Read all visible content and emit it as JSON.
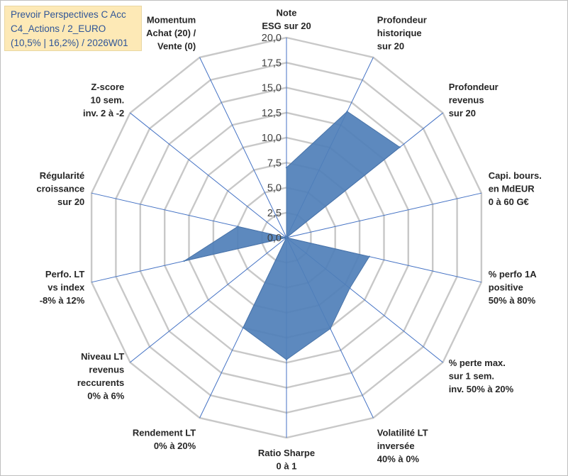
{
  "title": {
    "line1": "Prevoir Perspectives C Acc",
    "line2": "C4_Actions / 2_EURO",
    "line3": "(10,5% | 16,2%) / 2026W01"
  },
  "colors": {
    "fill": "#4f7fb9",
    "grid": "#c8c8c8",
    "spoke": "#4472c4",
    "title_bg": "#fde9b6",
    "title_text": "#2f5597"
  },
  "chart_data": {
    "type": "radar",
    "rmax": 20,
    "ticks": [
      "0,0",
      "2,5",
      "5,0",
      "7,5",
      "10,0",
      "12,5",
      "15,0",
      "17,5",
      "20,0"
    ],
    "axes": [
      {
        "label": [
          "Note",
          "ESG sur 20"
        ],
        "value": 7
      },
      {
        "label": [
          "Profondeur",
          "historique",
          "sur 20"
        ],
        "value": 14
      },
      {
        "label": [
          "Profondeur",
          "revenus",
          "sur 20"
        ],
        "value": 14.5
      },
      {
        "label": [
          "Capi. bours.",
          "en MdEUR",
          "0 à 60 G€"
        ],
        "value": 0
      },
      {
        "label": [
          "% perfo 1A",
          "positive",
          "50% à 80%"
        ],
        "value": 8.5
      },
      {
        "label": [
          "% perte max.",
          "sur 1 sem.",
          "inv. 50% à 20%"
        ],
        "value": 8.1
      },
      {
        "label": [
          "Volatilité LT",
          "inversée",
          "40% à 0%"
        ],
        "value": 10.1
      },
      {
        "label": [
          "Ratio Sharpe",
          "0 à 1"
        ],
        "value": 12.2
      },
      {
        "label": [
          "Rendement LT",
          "0% à 20%"
        ],
        "value": 10
      },
      {
        "label": [
          "Niveau LT",
          "revenus",
          "reccurents",
          "0% à 6%"
        ],
        "value": 0
      },
      {
        "label": [
          "Perfo. LT",
          "vs index",
          "-8% à 12%"
        ],
        "value": 10.5
      },
      {
        "label": [
          "Régularité",
          "croissance",
          "sur 20"
        ],
        "value": 5
      },
      {
        "label": [
          "Z-score",
          "10 sem.",
          "inv. 2 à -2"
        ],
        "value": 0
      },
      {
        "label": [
          "Momentum",
          "Achat (20) /",
          "Vente (0)"
        ],
        "value": 0
      }
    ]
  }
}
